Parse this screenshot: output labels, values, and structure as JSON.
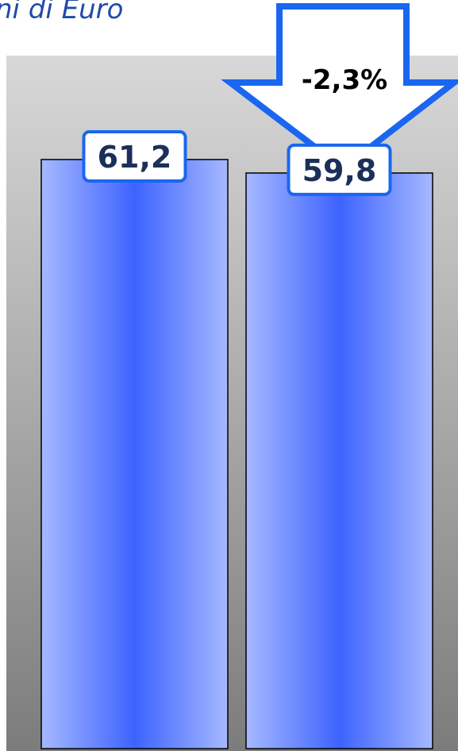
{
  "title": "ni di Euro",
  "chart_data": {
    "type": "bar",
    "categories": [
      "",
      ""
    ],
    "values": [
      61.2,
      59.8
    ],
    "value_labels": [
      "61,2",
      "59,8"
    ],
    "change_label": "-2,3%",
    "ylim": [
      0,
      72
    ],
    "grid": false,
    "legend": "none"
  },
  "colors": {
    "bar_center": "#3d63ff",
    "bar_edge": "#a6b9ff",
    "plot_bg_top": "#d8d8d8",
    "plot_bg_bottom": "#7c7c7c",
    "label_border": "#1a66f0",
    "arrow_border": "#1a66f0"
  }
}
